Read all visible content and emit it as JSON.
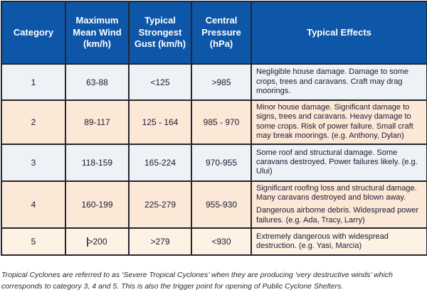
{
  "table": {
    "headers": [
      "Category",
      "Maximum Mean Wind (km/h)",
      "Typical Strongest Gust (km/h)",
      "Central Pressure (hPa)",
      "Typical Effects"
    ],
    "rows": [
      {
        "bg": "gray",
        "category": "1",
        "wind": "63-88",
        "gust": "<125",
        "pressure": ">985",
        "effects": [
          "Negligible house damage. Damage to some crops, trees and caravans. Craft may drag moorings."
        ]
      },
      {
        "bg": "peach",
        "category": "2",
        "wind": "89-117",
        "gust": "125 - 164",
        "pressure": "985 - 970",
        "effects": [
          "Minor house damage. Significant damage to signs, trees and caravans. Heavy damage to some crops. Risk of power failure. Small craft may break moorings. (e.g. Anthony, Dylan)"
        ]
      },
      {
        "bg": "gray",
        "category": "3",
        "wind": "118-159",
        "gust": "165-224",
        "pressure": "970-955",
        "effects": [
          "Some roof and structural damage. Some caravans destroyed. Power failures likely. (e.g. Ului)"
        ]
      },
      {
        "bg": "peach",
        "category": "4",
        "wind": "160-199",
        "gust": "225-279",
        "pressure": "955-930",
        "effects": [
          "Significant roofing loss and structural damage. Many caravans destroyed and blown away.",
          "Dangerous airborne debris. Widespread power failures. (e.g. Ada, Tracy, Larry)"
        ]
      },
      {
        "bg": "cream",
        "category": "5",
        "wind": ">200",
        "wind_cursor": true,
        "gust": ">279",
        "pressure": "<930",
        "effects": [
          "Extremely dangerous with widespread destruction. (e.g. Yasi, Marcia)"
        ]
      }
    ]
  },
  "footnote": "Tropical Cyclones are referred to as ‘Severe Tropical Cyclones’ when they are producing ‘very destructive winds’ which corresponds to category 3, 4 and 5. This is also the trigger point for opening of Public Cyclone Shelters.",
  "colors": {
    "header_bg": "#0e56a8",
    "header_text": "#ffffff",
    "row_gray": "#eef1f5",
    "row_peach": "#fce8d7",
    "row_cream": "#fdf2e3",
    "border": "#26262f"
  }
}
